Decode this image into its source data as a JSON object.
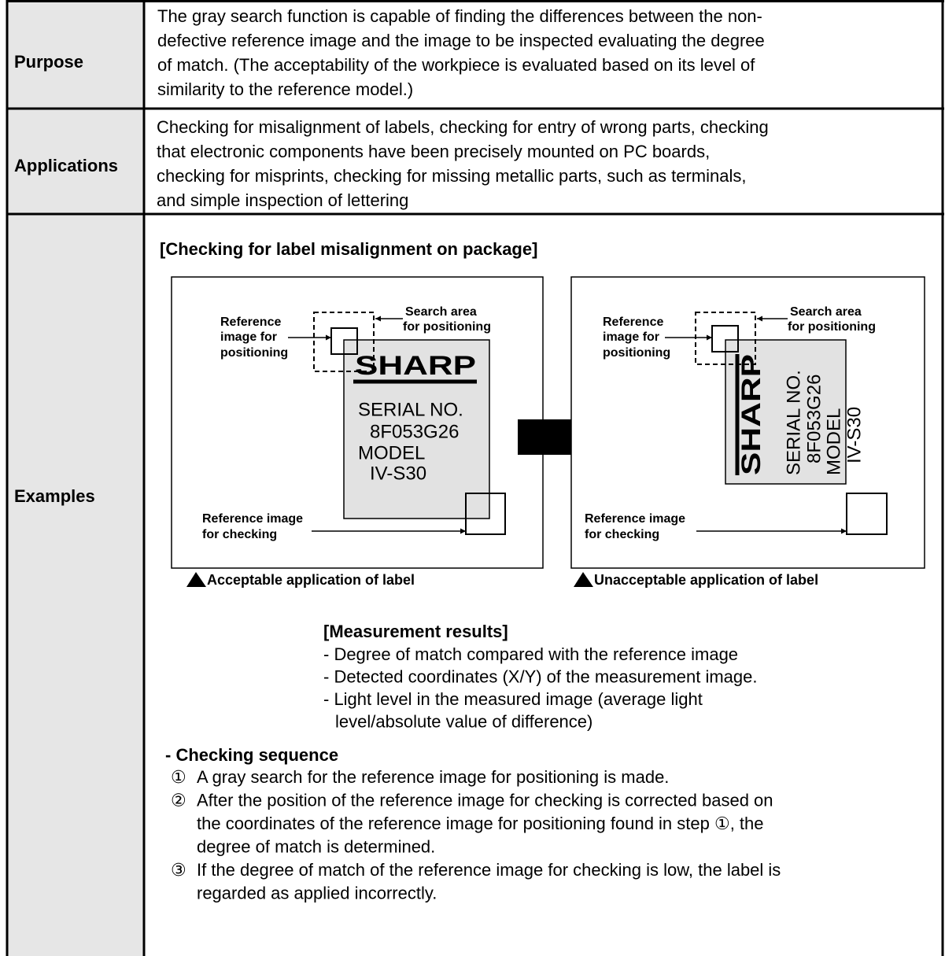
{
  "rows": [
    {
      "label": "Purpose",
      "lines": [
        "The gray search function is capable of finding the differences between the non-",
        "defective reference image and the image to be inspected evaluating the degree",
        "of match.  (The acceptability of the workpiece is evaluated based on its level of",
        "similarity to the reference model.)"
      ]
    },
    {
      "label": "Applications",
      "lines": [
        "Checking for misalignment of labels, checking for entry of wrong parts, checking",
        "that electronic components have been precisely mounted on PC boards,",
        "checking for misprints, checking for missing metallic parts, such as terminals,",
        "and simple inspection of lettering"
      ]
    },
    {
      "label": "Examples"
    }
  ],
  "example": {
    "heading": "[Checking for label misalignment on package]",
    "figures": [
      {
        "caption": "Acceptable application of label",
        "positioning_label": [
          "Reference",
          "image for",
          "positioning"
        ],
        "search_area_label": [
          "Search area",
          "for positioning"
        ],
        "logo": "SHARP",
        "label_lines": [
          "SERIAL NO.",
          "8F053G26",
          "MODEL",
          "IV-S30"
        ],
        "checking_label": [
          "Reference image",
          "for checking"
        ]
      },
      {
        "caption": "Unacceptable application of label",
        "positioning_label": [
          "Reference",
          "image for",
          "positioning"
        ],
        "search_area_label": [
          "Search area",
          "for positioning"
        ],
        "logo": "SHARP",
        "label_lines": [
          "SERIAL NO.",
          "8F053G26",
          "MODEL",
          "IV-S30"
        ],
        "checking_label": [
          "Reference image",
          "for checking"
        ]
      }
    ],
    "results": {
      "heading": "[Measurement results]",
      "lines": [
        "- Degree of match compared with the reference image",
        "- Detected coordinates (X/Y) of the measurement image.",
        "- Light level in the measured image (average light",
        "level/absolute value of difference)"
      ]
    },
    "sequence": {
      "heading": "- Checking sequence",
      "steps": [
        {
          "number": "①",
          "lines": [
            "A gray search for the reference image for positioning is made."
          ]
        },
        {
          "number": "②",
          "lines": [
            "After the position of the reference image for checking is corrected based on",
            "the coordinates of the reference image for positioning found in step ①, the",
            "degree of match is determined."
          ]
        },
        {
          "number": "③",
          "lines": [
            "If the degree of match of the reference image for checking is low, the label is",
            "regarded as applied incorrectly."
          ]
        }
      ]
    }
  }
}
